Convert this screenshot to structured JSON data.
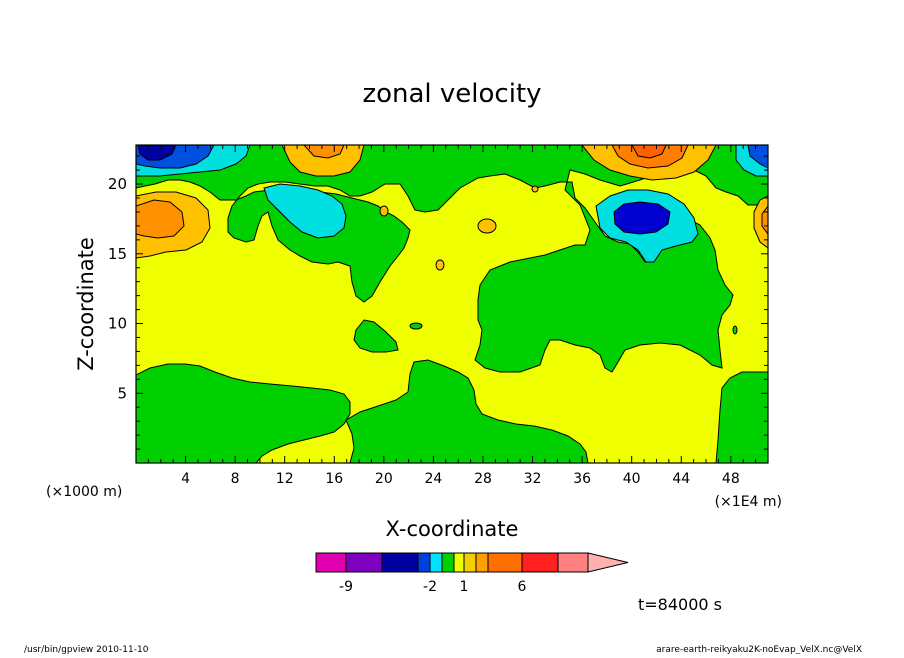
{
  "chart_data": {
    "type": "heatmap",
    "title": "zonal velocity",
    "xlabel": "X-coordinate",
    "ylabel": "Z-coordinate",
    "x_unit_left": "(×1000 m)",
    "x_unit_right": "(×1E4 m)",
    "x_ticks": [
      "4",
      "8",
      "12",
      "16",
      "20",
      "24",
      "28",
      "32",
      "36",
      "40",
      "44",
      "48"
    ],
    "y_ticks": [
      "5",
      "10",
      "15",
      "20"
    ],
    "xlim": [
      0,
      51
    ],
    "ylim": [
      0,
      22.8
    ],
    "legend": "bottom-center",
    "colorbar_labels": [
      {
        "text": "-9",
        "at": -9
      },
      {
        "text": "-2",
        "at": -2
      },
      {
        "text": "1",
        "at": 1
      },
      {
        "text": "6",
        "at": 6
      }
    ],
    "colorbar_colors": [
      "#e000b0",
      "#8000c0",
      "#0000a0",
      "#0040e0",
      "#00a0ff",
      "#00e0e0",
      "#00d000",
      "#a0e000",
      "#f0f000",
      "#f0d000",
      "#f0a000",
      "#ff7000",
      "#ff2020",
      "#ff8080",
      "#ffb0b0"
    ],
    "field_colors": {
      "strong_negative": "#0000a0",
      "medium_negative": "#0050e0",
      "weak_negative": "#00e0e0",
      "near_zero_negative": "#00d000",
      "near_zero_positive": "#f0ff00",
      "weak_positive": "#ffc000",
      "medium_positive": "#ff8000",
      "strong_positive": "#ff6000"
    },
    "time_label": "t=84000 s"
  },
  "footer": {
    "left": "/usr/bin/gpview  2010-11-10",
    "right": "arare-earth-reikyaku2K-noEvap_VelX.nc@VelX"
  }
}
